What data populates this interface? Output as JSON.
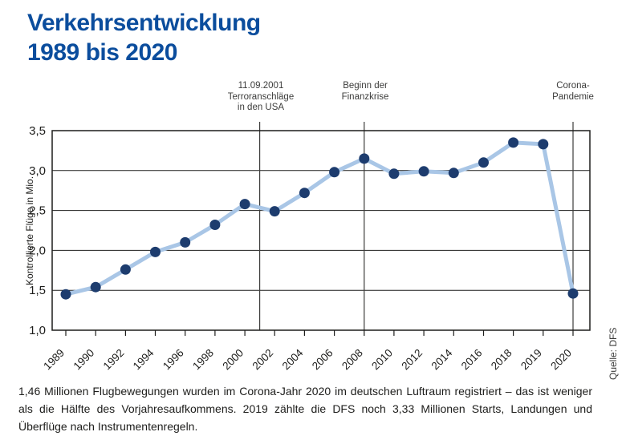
{
  "title": "Verkehrsentwicklung\n1989 bis 2020",
  "source": "Quelle: DFS",
  "footer": "1,46 Millionen Flugbewegungen wurden im Corona-Jahr 2020 im deutschen Luftraum registriert – das ist weniger als die Hälfte des Vorjahresaufkommens. 2019 zählte die DFS noch 3,33 Millionen Starts, Landungen und Überflüge nach Instrumentenregeln.",
  "colors": {
    "title_blue": "#0b4d9d",
    "marker_navy": "#1d3c6e",
    "line_light_blue": "#a9c6e6",
    "axis_dark": "#1d1d1b",
    "annotation_gray": "#3c3c3b"
  },
  "annotations": [
    {
      "label": "11.09.2001\nTerroranschläge\nin den USA",
      "x_index": 6.5
    },
    {
      "label": "Beginn der\nFinanzkrise",
      "x_index": 10
    },
    {
      "label": "Corona-\nPandemie",
      "x_index": 17
    }
  ],
  "chart_data": {
    "type": "line",
    "title": "Verkehrsentwicklung 1989 bis 2020",
    "categories": [
      "1989",
      "1990",
      "1992",
      "1994",
      "1996",
      "1998",
      "2000",
      "2002",
      "2004",
      "2006",
      "2008",
      "2010",
      "2012",
      "2014",
      "2016",
      "2018",
      "2019",
      "2020"
    ],
    "values": [
      1.45,
      1.54,
      1.76,
      1.98,
      2.1,
      2.32,
      2.58,
      2.49,
      2.72,
      2.98,
      3.15,
      2.96,
      2.99,
      2.97,
      3.1,
      3.35,
      3.33,
      1.46
    ],
    "xlabel": "",
    "ylabel": "Kontrollierte Flüge in Mio.",
    "ylim": [
      1.0,
      3.5
    ],
    "yticks": [
      "1,0",
      "1,5",
      "2,0",
      "2,5",
      "3,0",
      "3,5"
    ],
    "ytick_values": [
      1.0,
      1.5,
      2.0,
      2.5,
      3.0,
      3.5
    ],
    "grid": true,
    "legend": "none"
  }
}
